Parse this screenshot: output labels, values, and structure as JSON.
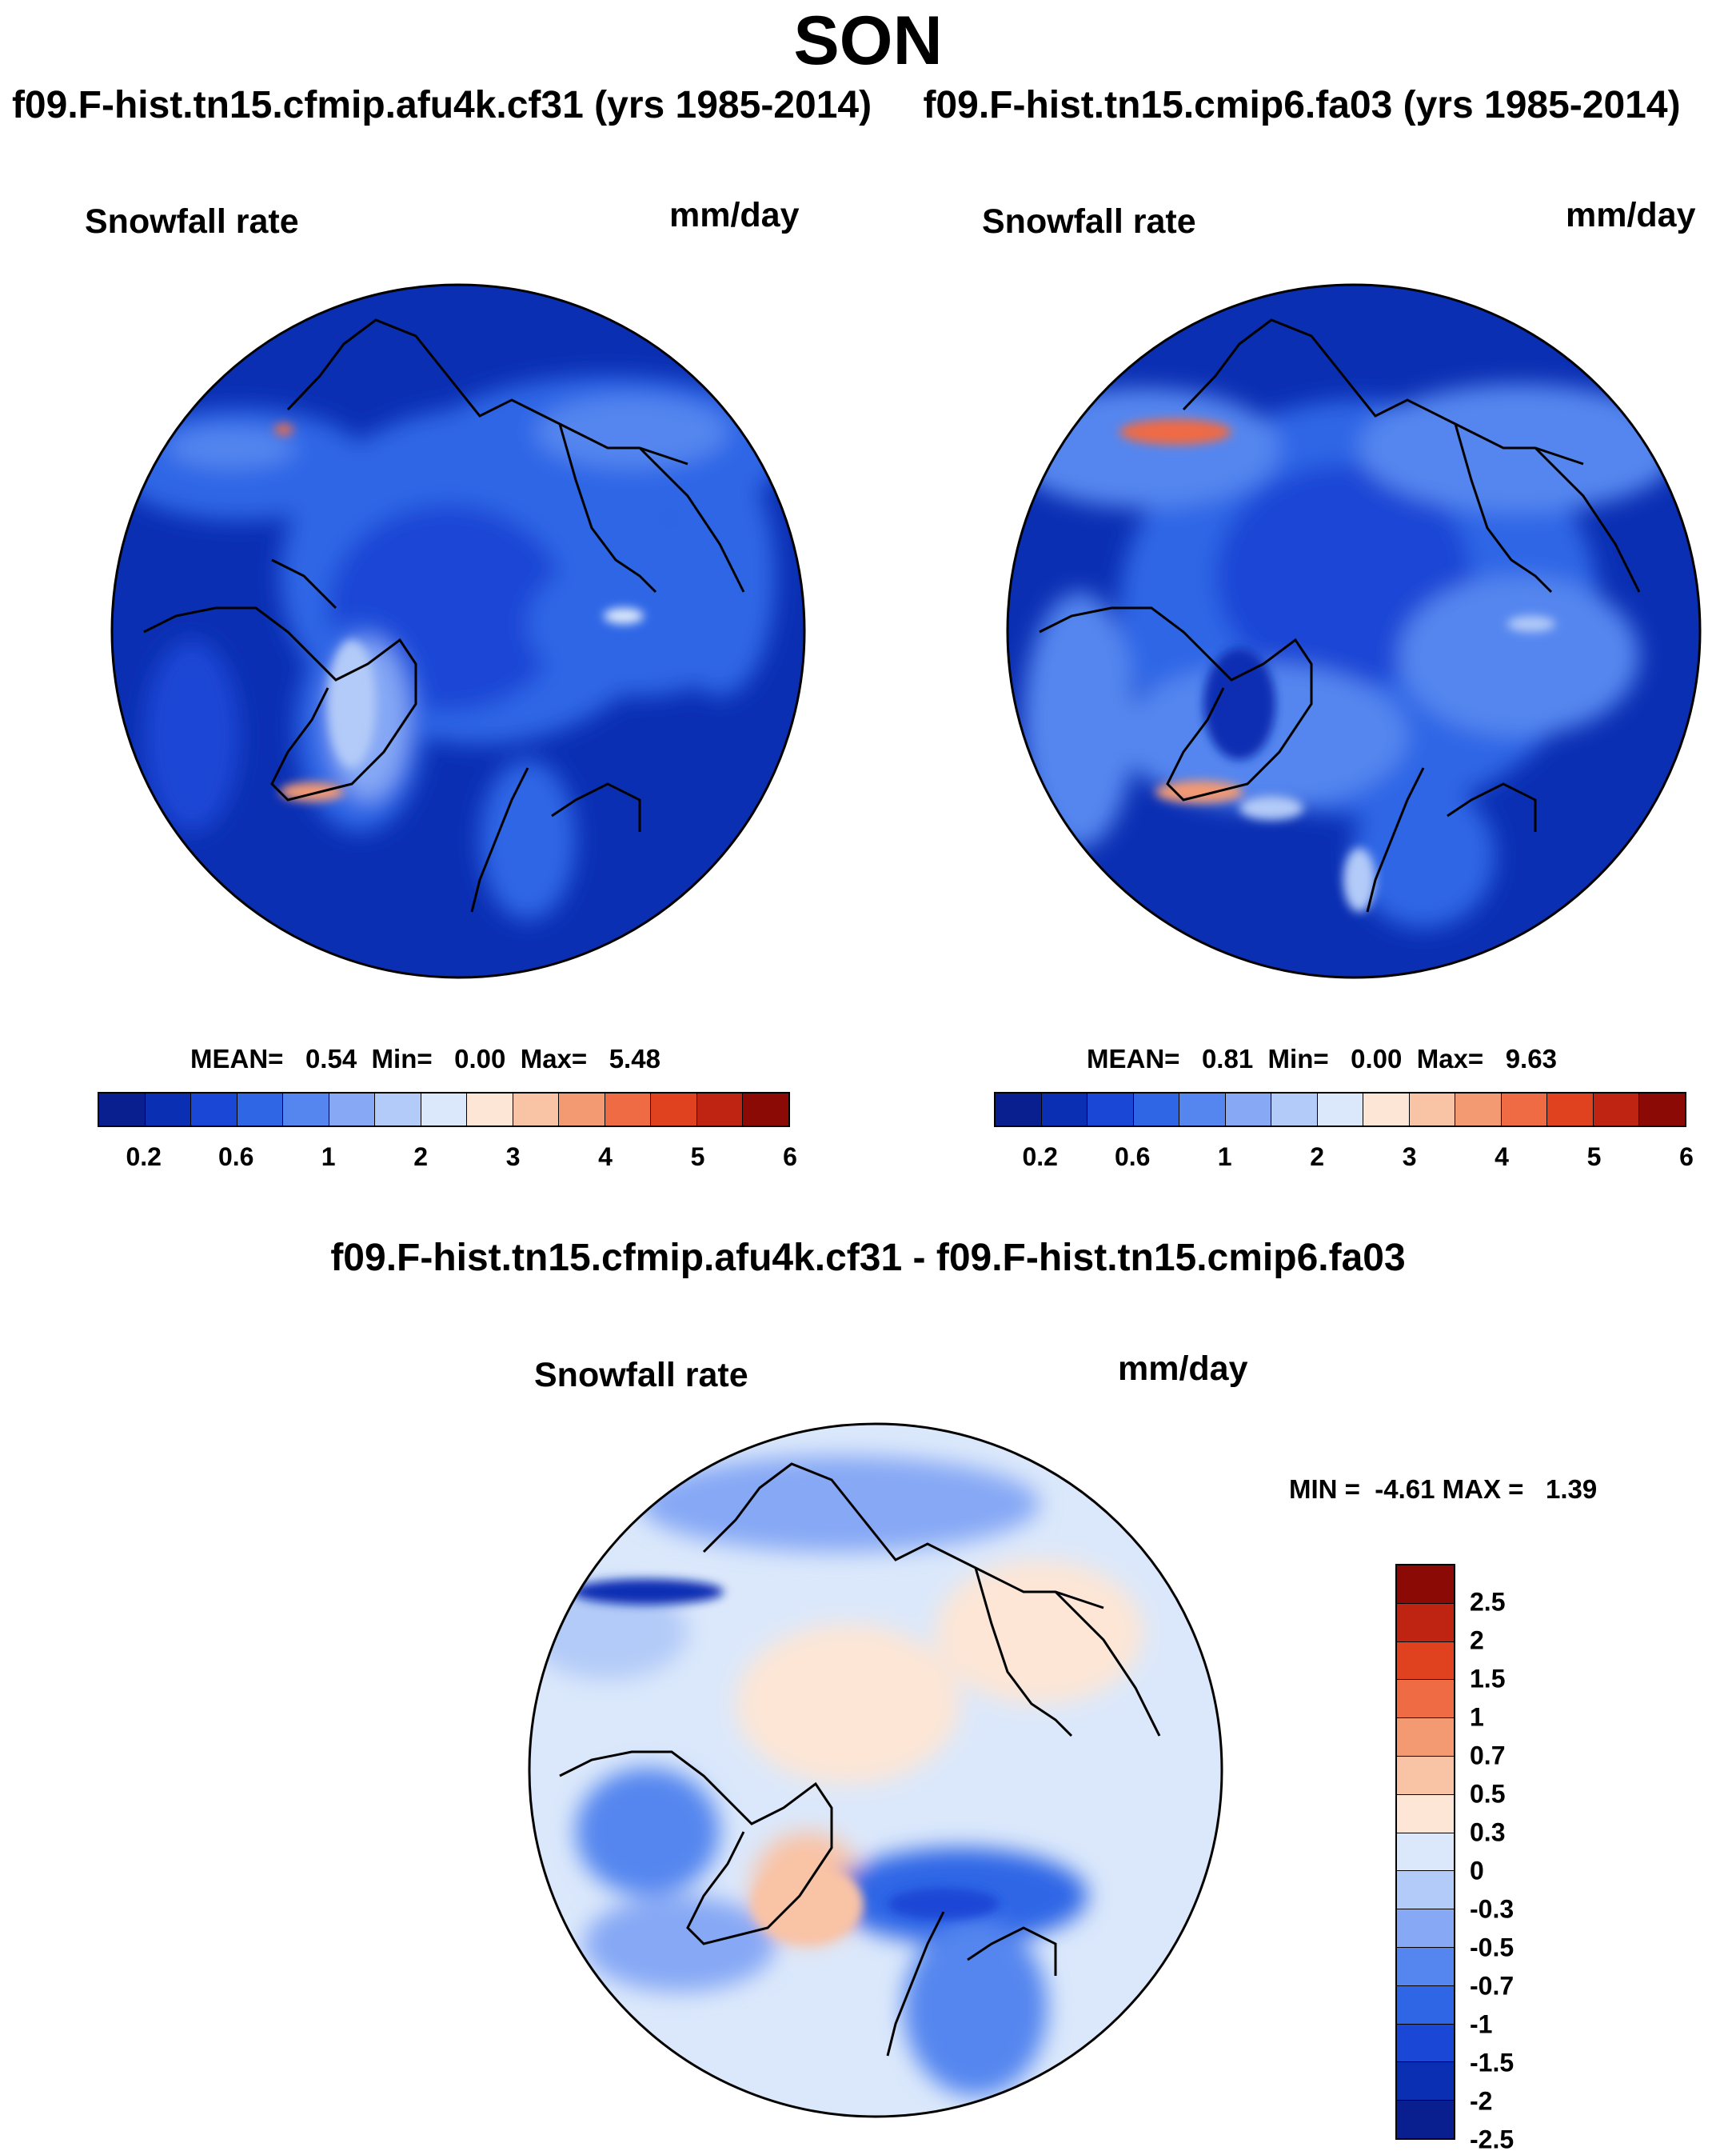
{
  "title": "SON",
  "panels": [
    {
      "case_title": "f09.F-hist.tn15.cfmip.afu4k.cf31 (yrs 1985-2014)",
      "variable": "Snowfall rate",
      "units": "mm/day",
      "stats": {
        "mean_label": "MEAN=",
        "mean": "0.54",
        "min_label": "Min=",
        "min": "0.00",
        "max_label": "Max=",
        "max": "5.48"
      }
    },
    {
      "case_title": "f09.F-hist.tn15.cmip6.fa03 (yrs 1985-2014)",
      "variable": "Snowfall rate",
      "units": "mm/day",
      "stats": {
        "mean_label": "MEAN=",
        "mean": "0.81",
        "min_label": "Min=",
        "min": "0.00",
        "max_label": "Max=",
        "max": "9.63"
      }
    }
  ],
  "diff_panel": {
    "case_title": "f09.F-hist.tn15.cfmip.afu4k.cf31 - f09.F-hist.tn15.cmip6.fa03",
    "variable": "Snowfall rate",
    "units": "mm/day",
    "minmax": {
      "min_label": "MIN =",
      "min": "-4.61",
      "max_label": "MAX =",
      "max": "1.39"
    }
  },
  "abs_colorbar": {
    "colors": [
      "#0a1f8f",
      "#0b2fb3",
      "#1a47d6",
      "#2e66e6",
      "#5586ef",
      "#86a8f5",
      "#b3cbf8",
      "#dbe8fb",
      "#fde6d6",
      "#f9c3a6",
      "#f49a72",
      "#ef6b44",
      "#e0411f",
      "#bf2312",
      "#8b0a06"
    ],
    "tick_labels": [
      "0.2",
      "0.6",
      "1",
      "2",
      "3",
      "4",
      "5",
      "6"
    ],
    "tick_boundaries": [
      1,
      3,
      5,
      7,
      9,
      11,
      13,
      15
    ]
  },
  "diff_colorbar": {
    "colors": [
      "#8b0a06",
      "#bf2312",
      "#e0411f",
      "#ef6b44",
      "#f49a72",
      "#f9c3a6",
      "#fde6d6",
      "#dbe8fb",
      "#b3cbf8",
      "#86a8f5",
      "#5586ef",
      "#2e66e6",
      "#1a47d6",
      "#0b2fb3",
      "#0a1f8f"
    ],
    "tick_labels": [
      "2.5",
      "2",
      "1.5",
      "1",
      "0.7",
      "0.5",
      "0.3",
      "0",
      "-0.3",
      "-0.5",
      "-0.7",
      "-1",
      "-1.5",
      "-2",
      "-2.5"
    ]
  }
}
